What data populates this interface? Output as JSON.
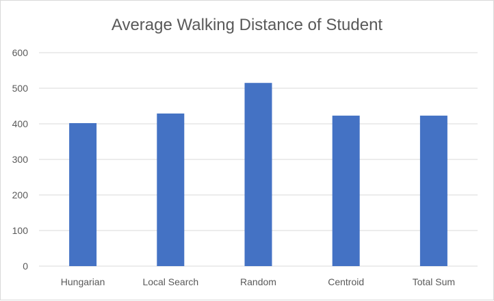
{
  "chart_data": {
    "type": "bar",
    "title": "Average Walking Distance of Student",
    "xlabel": "",
    "ylabel": "",
    "categories": [
      "Hungarian",
      "Local Search",
      "Random",
      "Centroid",
      "Total Sum"
    ],
    "values": [
      402,
      429,
      515,
      423,
      423
    ],
    "ylim": [
      0,
      600
    ],
    "yticks": [
      0,
      100,
      200,
      300,
      400,
      500,
      600
    ],
    "grid": true,
    "legend": "none",
    "colors": {
      "bar": "#4472c4",
      "grid": "#d9d9d9",
      "text": "#595959"
    }
  }
}
